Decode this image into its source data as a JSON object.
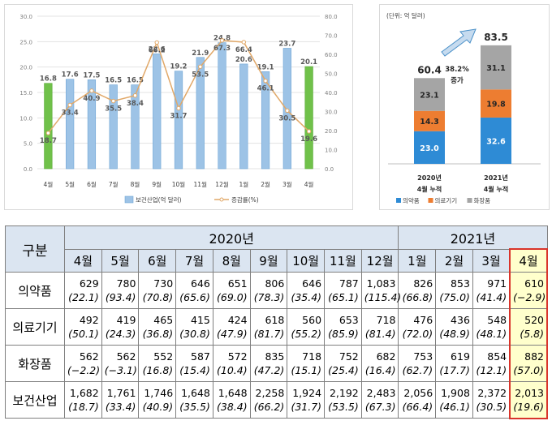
{
  "chart_data": [
    {
      "type": "bar",
      "categories": [
        "4월",
        "5월",
        "6월",
        "7월",
        "8월",
        "9월",
        "10월",
        "11월",
        "12월",
        "1월",
        "2월",
        "3월",
        "4월"
      ],
      "series": [
        {
          "name": "보건산업(억 달러)",
          "axis": "left",
          "values": [
            16.8,
            17.6,
            17.5,
            16.5,
            16.5,
            22.6,
            19.2,
            21.9,
            24.8,
            20.6,
            19.1,
            23.7,
            20.1
          ],
          "color": "#9dc3e6",
          "highlight_color": "#70c14a"
        },
        {
          "name": "증감률(%)",
          "type": "line",
          "axis": "right",
          "values": [
            18.7,
            33.4,
            40.9,
            35.5,
            38.4,
            66.2,
            31.7,
            53.5,
            67.3,
            66.4,
            46.1,
            30.5,
            19.6
          ],
          "color": "#e1a868"
        }
      ],
      "ylim": [
        0,
        30
      ],
      "y2lim": [
        0,
        80
      ],
      "yticks": [
        "0.0",
        "5.0",
        "10.0",
        "15.0",
        "20.0",
        "25.0",
        "30.0"
      ],
      "y2ticks": [
        "0.0",
        "10.0",
        "20.0",
        "30.0",
        "40.0",
        "50.0",
        "60.0",
        "70.0",
        "80.0"
      ],
      "legend": "bottom",
      "grid": true
    },
    {
      "type": "bar",
      "stacked": true,
      "unit_note": "(단위: 억 달러)",
      "categories": [
        "2020년\n4월 누적",
        "2021년\n4월 누적"
      ],
      "totals": [
        60.4,
        83.5
      ],
      "series": [
        {
          "name": "의약품",
          "values": [
            23.0,
            32.6
          ],
          "color": "#2e8bd5"
        },
        {
          "name": "의료기기",
          "values": [
            14.3,
            19.8
          ],
          "color": "#ed7d31"
        },
        {
          "name": "화장품",
          "values": [
            23.1,
            31.1
          ],
          "color": "#a5a5a5"
        }
      ],
      "annotation": [
        "38.2%",
        "증가"
      ],
      "legend": "bottom"
    }
  ],
  "table": {
    "corner": "구분",
    "years": [
      "2020년",
      "2021년"
    ],
    "months": [
      "4월",
      "5월",
      "6월",
      "7월",
      "8월",
      "9월",
      "10월",
      "11월",
      "12월",
      "1월",
      "2월",
      "3월",
      "4월"
    ],
    "rows": [
      {
        "label": "의약품",
        "values": [
          "629",
          "780",
          "730",
          "646",
          "651",
          "806",
          "646",
          "787",
          "1,083",
          "826",
          "853",
          "971",
          "610"
        ],
        "pcts": [
          "(22.1)",
          "(93.4)",
          "(70.8)",
          "(65.6)",
          "(69.0)",
          "(78.3)",
          "(35.4)",
          "(65.1)",
          "(115.4)",
          "(66.8)",
          "(75.0)",
          "(41.4)",
          "(−2.9)"
        ]
      },
      {
        "label": "의료기기",
        "values": [
          "492",
          "419",
          "465",
          "415",
          "424",
          "618",
          "560",
          "653",
          "718",
          "476",
          "436",
          "548",
          "520"
        ],
        "pcts": [
          "(50.1)",
          "(24.3)",
          "(36.8)",
          "(30.8)",
          "(47.9)",
          "(81.7)",
          "(55.2)",
          "(85.9)",
          "(81.4)",
          "(72.0)",
          "(48.9)",
          "(48.1)",
          "(5.8)"
        ]
      },
      {
        "label": "화장품",
        "values": [
          "562",
          "562",
          "552",
          "587",
          "572",
          "835",
          "718",
          "752",
          "682",
          "753",
          "619",
          "854",
          "882"
        ],
        "pcts": [
          "(−2.2)",
          "(−3.1)",
          "(16.8)",
          "(15.4)",
          "(10.4)",
          "(47.2)",
          "(15.1)",
          "(25.4)",
          "(16.4)",
          "(62.7)",
          "(17.7)",
          "(12.1)",
          "(57.0)"
        ]
      },
      {
        "label": "보건산업",
        "values": [
          "1,682",
          "1,761",
          "1,746",
          "1,648",
          "1,648",
          "2,258",
          "1,924",
          "2,192",
          "2,483",
          "2,056",
          "1,908",
          "2,372",
          "2,013"
        ],
        "pcts": [
          "(18.7)",
          "(33.4)",
          "(40.9)",
          "(35.5)",
          "(38.4)",
          "(66.2)",
          "(31.7)",
          "(53.5)",
          "(67.3)",
          "(66.4)",
          "(46.1)",
          "(30.5)",
          "(19.6)"
        ]
      }
    ]
  }
}
